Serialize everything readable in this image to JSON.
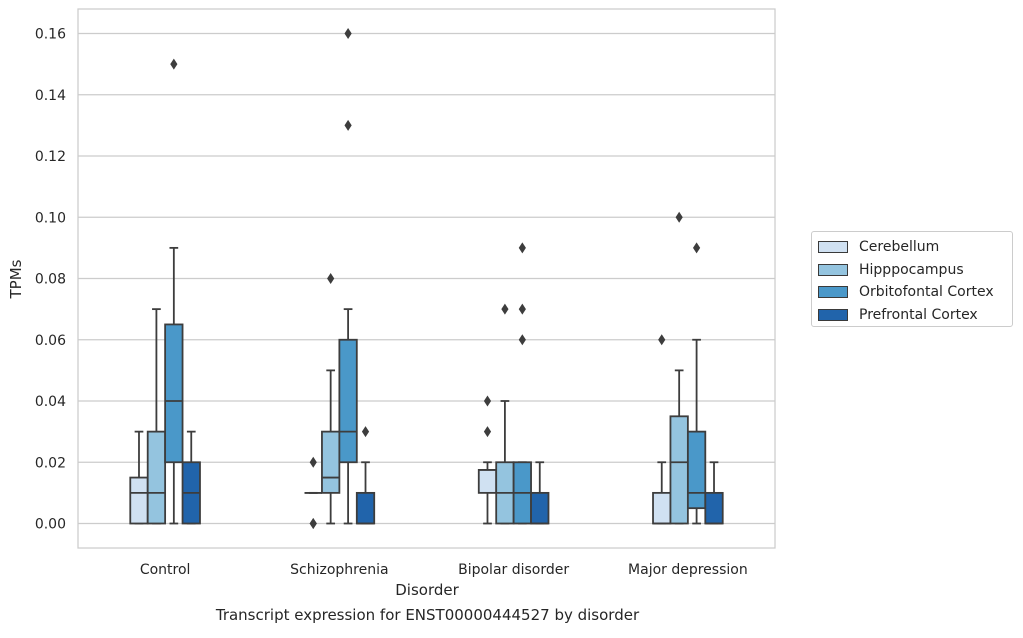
{
  "caption": "Transcript expression for ENST00000444527 by disorder",
  "chart_data": {
    "type": "box",
    "xlabel": "Disorder",
    "ylabel": "TPMs",
    "ylim": [
      -0.008,
      0.168
    ],
    "y_ticks": [
      "0.00",
      "0.02",
      "0.04",
      "0.06",
      "0.08",
      "0.10",
      "0.12",
      "0.14",
      "0.16"
    ],
    "grid": "horizontal",
    "legend_position": "right",
    "categories": [
      "Control",
      "Schizophrenia",
      "Bipolar disorder",
      "Major depression"
    ],
    "series": [
      {
        "name": "Cerebellum",
        "color": "#d0e1f2",
        "boxes": [
          {
            "q1": 0.0,
            "median": 0.01,
            "q3": 0.015,
            "whisker_low": 0.0,
            "whisker_high": 0.03,
            "outliers": []
          },
          {
            "q1": 0.01,
            "median": 0.01,
            "q3": 0.01,
            "whisker_low": 0.01,
            "whisker_high": 0.01,
            "outliers": [
              0.0,
              0.0,
              0.02
            ]
          },
          {
            "q1": 0.01,
            "median": 0.0175,
            "q3": 0.0175,
            "whisker_low": 0.0,
            "whisker_high": 0.02,
            "outliers": [
              0.03,
              0.04
            ]
          },
          {
            "q1": 0.0,
            "median": 0.0,
            "q3": 0.01,
            "whisker_low": 0.0,
            "whisker_high": 0.02,
            "outliers": [
              0.06
            ]
          }
        ]
      },
      {
        "name": "Hipppocampus",
        "color": "#94c4df",
        "boxes": [
          {
            "q1": 0.0,
            "median": 0.01,
            "q3": 0.03,
            "whisker_low": 0.0,
            "whisker_high": 0.07,
            "outliers": []
          },
          {
            "q1": 0.01,
            "median": 0.015,
            "q3": 0.03,
            "whisker_low": 0.0,
            "whisker_high": 0.05,
            "outliers": [
              0.08
            ]
          },
          {
            "q1": 0.0,
            "median": 0.01,
            "q3": 0.02,
            "whisker_low": 0.0,
            "whisker_high": 0.04,
            "outliers": [
              0.07
            ]
          },
          {
            "q1": 0.0,
            "median": 0.02,
            "q3": 0.035,
            "whisker_low": 0.0,
            "whisker_high": 0.05,
            "outliers": [
              0.1
            ]
          }
        ]
      },
      {
        "name": "Orbitofontal Cortex",
        "color": "#4a98c9",
        "boxes": [
          {
            "q1": 0.02,
            "median": 0.04,
            "q3": 0.065,
            "whisker_low": 0.0,
            "whisker_high": 0.09,
            "outliers": [
              0.15
            ]
          },
          {
            "q1": 0.02,
            "median": 0.03,
            "q3": 0.06,
            "whisker_low": 0.0,
            "whisker_high": 0.07,
            "outliers": [
              0.13,
              0.16
            ]
          },
          {
            "q1": 0.0,
            "median": 0.01,
            "q3": 0.02,
            "whisker_low": 0.0,
            "whisker_high": 0.02,
            "outliers": [
              0.06,
              0.07,
              0.09
            ]
          },
          {
            "q1": 0.005,
            "median": 0.01,
            "q3": 0.03,
            "whisker_low": 0.0,
            "whisker_high": 0.06,
            "outliers": [
              0.09
            ]
          }
        ]
      },
      {
        "name": "Prefrontal Cortex",
        "color": "#2164ab",
        "boxes": [
          {
            "q1": 0.0,
            "median": 0.01,
            "q3": 0.02,
            "whisker_low": 0.0,
            "whisker_high": 0.03,
            "outliers": []
          },
          {
            "q1": 0.0,
            "median": 0.0,
            "q3": 0.01,
            "whisker_low": 0.0,
            "whisker_high": 0.02,
            "outliers": [
              0.03
            ]
          },
          {
            "q1": 0.0,
            "median": 0.0,
            "q3": 0.01,
            "whisker_low": 0.0,
            "whisker_high": 0.02,
            "outliers": []
          },
          {
            "q1": 0.0,
            "median": 0.0,
            "q3": 0.01,
            "whisker_low": 0.0,
            "whisker_high": 0.02,
            "outliers": []
          }
        ]
      }
    ]
  }
}
